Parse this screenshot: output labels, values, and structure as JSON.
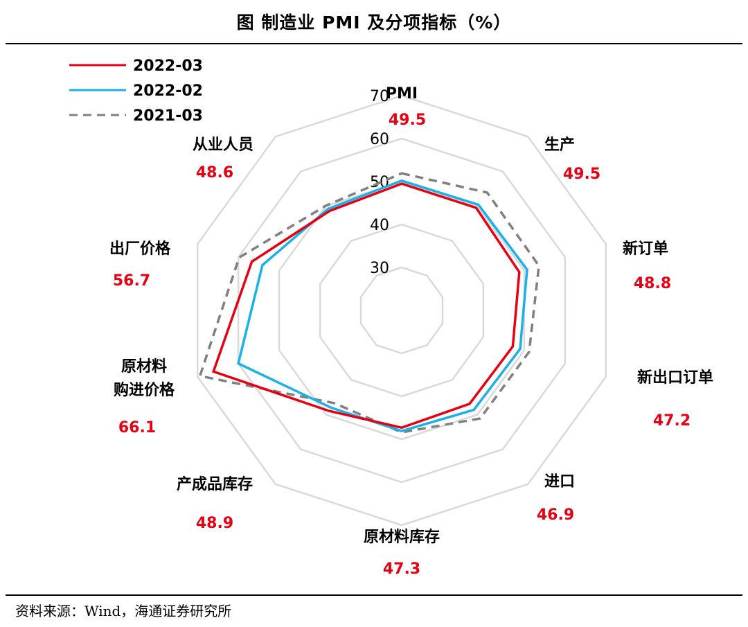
{
  "title": "图  制造业 PMI 及分项指标（%）",
  "source": "资料来源：Wind，海通证券研究所",
  "chart_data": {
    "type": "radar",
    "axes": [
      {
        "name": "PMI",
        "value_label": "49.5"
      },
      {
        "name": "生产",
        "value_label": "49.5"
      },
      {
        "name": "新订单",
        "value_label": "48.8"
      },
      {
        "name": "新出口订单",
        "value_label": "47.2"
      },
      {
        "name": "进口",
        "value_label": "46.9"
      },
      {
        "name": "原材料库存",
        "value_label": "47.3"
      },
      {
        "name": "产成品库存",
        "value_label": "48.9"
      },
      {
        "name": "原材料\n购进价格",
        "value_label": "66.1"
      },
      {
        "name": "出厂价格",
        "value_label": "56.7"
      },
      {
        "name": "从业人员",
        "value_label": "48.6"
      }
    ],
    "range": [
      20,
      70
    ],
    "ticks": [
      "30",
      "40",
      "50",
      "60",
      "70"
    ],
    "series": [
      {
        "name": "2022-03",
        "color": "#e60012",
        "dash": "solid",
        "values": [
          49.5,
          49.5,
          48.8,
          47.2,
          46.9,
          47.3,
          48.9,
          66.1,
          56.7,
          48.6
        ]
      },
      {
        "name": "2022-02",
        "color": "#1ab0e8",
        "dash": "solid",
        "values": [
          50.2,
          50.4,
          50.7,
          49.0,
          48.6,
          48.1,
          48.0,
          60.0,
          54.1,
          49.2
        ]
      },
      {
        "name": "2021-03",
        "color": "#808080",
        "dash": "dashed",
        "values": [
          51.9,
          53.9,
          53.6,
          51.2,
          51.1,
          48.4,
          46.7,
          69.4,
          59.8,
          50.1
        ]
      }
    ]
  }
}
